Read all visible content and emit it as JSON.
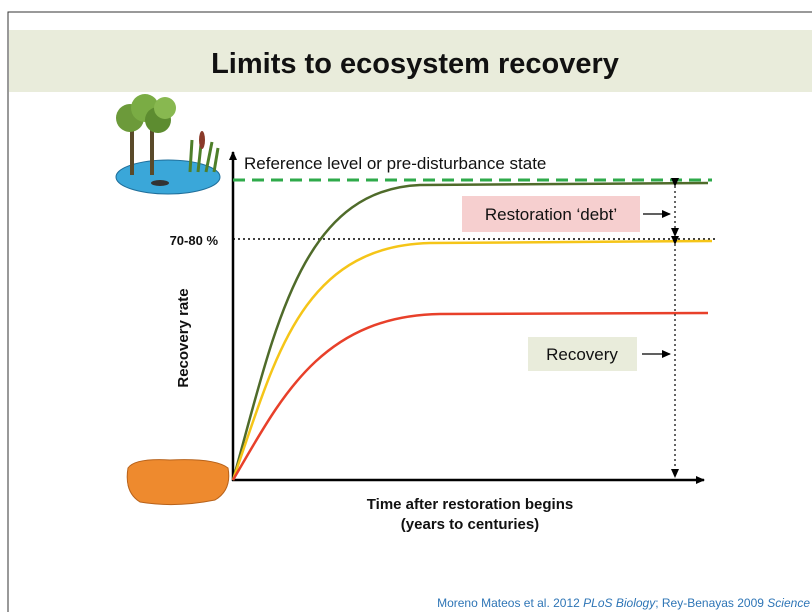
{
  "title": "Limits to ecosystem recovery",
  "diagram": {
    "reference_label": "Reference level or pre-disturbance state",
    "threshold_label": "70-80 %",
    "y_axis_label": "Recovery rate",
    "x_axis_label": [
      "Time after restoration begins",
      "(years to centuries)"
    ],
    "debt_label": "Restoration ‘debt’",
    "recovery_label": "Recovery"
  },
  "citation": {
    "parts": [
      "Moreno Mateos et al. 2012 ",
      "PLoS Biology",
      "; Rey-Benayas 2009 ",
      "Science"
    ]
  }
}
